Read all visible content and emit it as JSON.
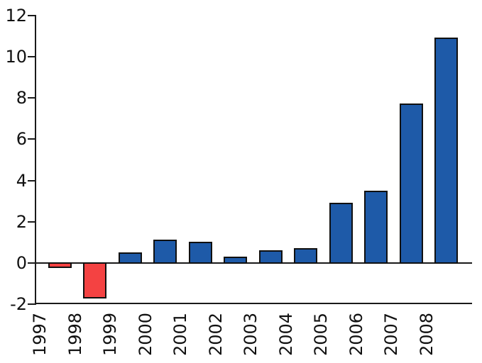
{
  "chart_data": {
    "type": "bar",
    "title": "",
    "xlabel": "",
    "ylabel": "",
    "categories": [
      "1997",
      "1998",
      "1999",
      "2000",
      "2001",
      "2002",
      "2003",
      "2004",
      "2005",
      "2006",
      "2007",
      "2008"
    ],
    "values": [
      -0.2,
      -1.7,
      0.5,
      1.1,
      1.0,
      0.3,
      0.6,
      0.7,
      2.9,
      3.5,
      7.7,
      10.9
    ],
    "ylim": [
      -2,
      12
    ],
    "yticks": [
      -2,
      0,
      2,
      4,
      6,
      8,
      10,
      12
    ],
    "grid": false,
    "legend": null,
    "colors": {
      "bar_positive": "#1E5AA8",
      "bar_negative": "#F44242",
      "bar_edge": "#101010",
      "axis": "#1a1a1a",
      "text": "#111111",
      "background": "#ffffff"
    }
  }
}
